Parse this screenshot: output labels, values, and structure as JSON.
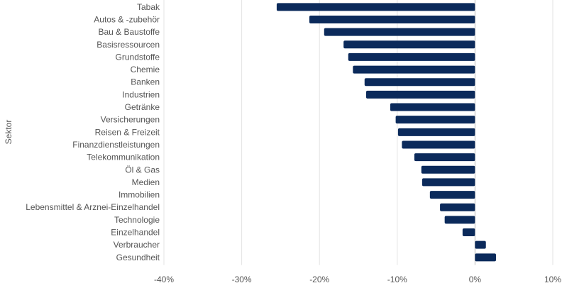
{
  "chart_data": {
    "type": "bar",
    "orientation": "horizontal",
    "title": "",
    "xlabel": "",
    "ylabel": "Sektor",
    "xlim": [
      -40,
      10
    ],
    "x_ticks": [
      -40,
      -30,
      -20,
      -10,
      0,
      10
    ],
    "x_tick_labels": [
      "-40%",
      "-30%",
      "-20%",
      "-10%",
      "0%",
      "10%"
    ],
    "grid": "vertical",
    "bar_color": "#0b2a5b",
    "categories": [
      "Tabak",
      "Autos & -zubehör",
      "Bau & Baustoffe",
      "Basisressourcen",
      "Grundstoffe",
      "Chemie",
      "Banken",
      "Industrien",
      "Getränke",
      "Versicherungen",
      "Reisen & Freizeit",
      "Finanzdienstleistungen",
      "Telekommunikation",
      "Öl & Gas",
      "Medien",
      "Immobilien",
      "Lebensmittel & Arznei-Einzelhandel",
      "Technologie",
      "Einzelhandel",
      "Verbraucher",
      "Gesundheit"
    ],
    "values": [
      -25.5,
      -21.3,
      -19.4,
      -16.9,
      -16.3,
      -15.7,
      -14.2,
      -14.0,
      -10.9,
      -10.2,
      -9.9,
      -9.4,
      -7.8,
      -6.9,
      -6.8,
      -5.8,
      -4.5,
      -3.9,
      -1.6,
      1.4,
      2.7
    ]
  }
}
